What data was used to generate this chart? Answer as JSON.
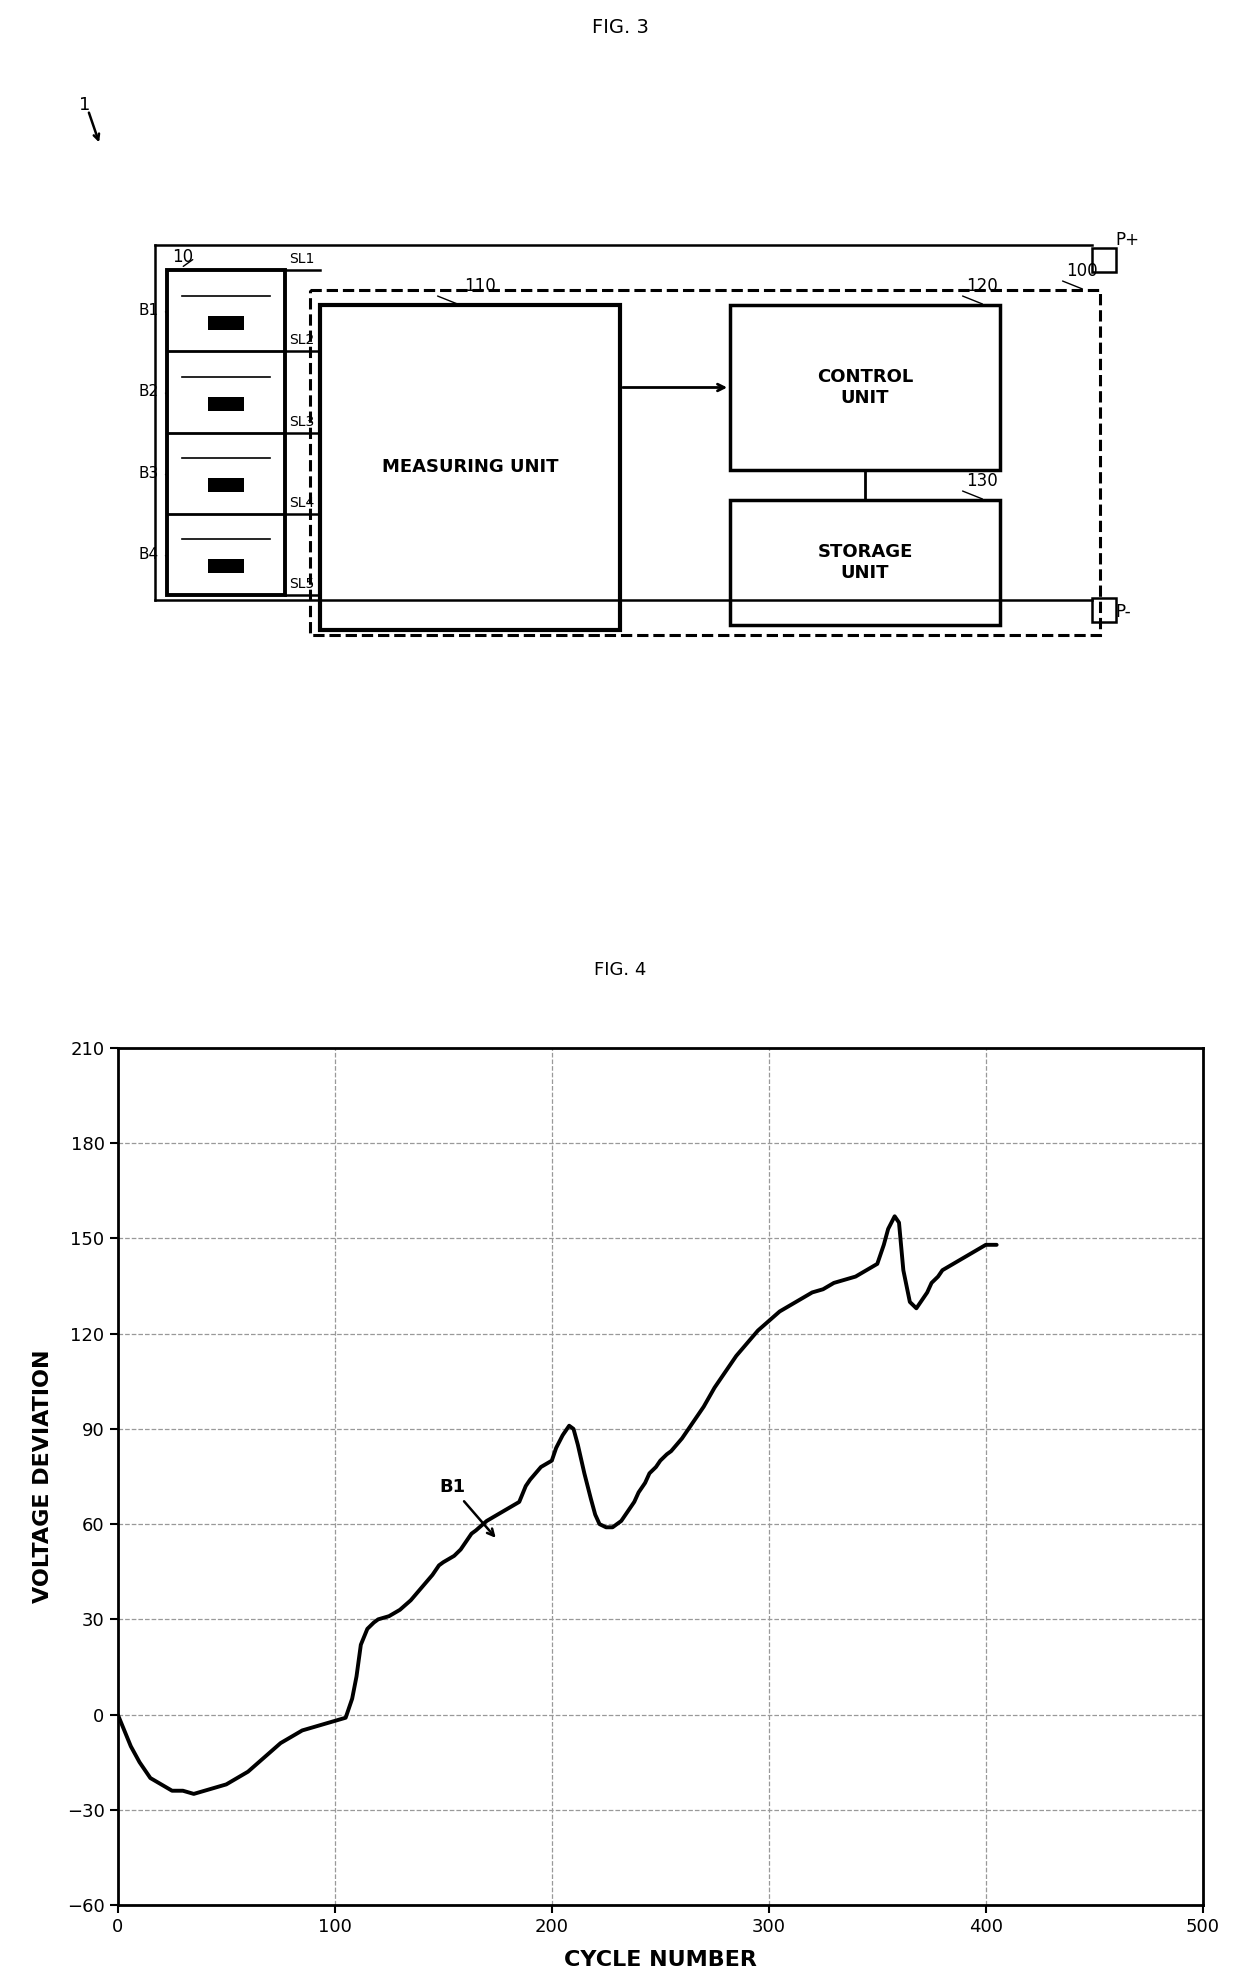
{
  "fig3_title": "FIG. 3",
  "fig4_title": "FIG. 4",
  "label_1": "1",
  "label_10": "10",
  "label_100": "100",
  "label_110": "110",
  "label_120": "120",
  "label_130": "130",
  "label_Pplus": "P+",
  "label_Pminus": "P-",
  "label_B1": "B1",
  "label_B2": "B2",
  "label_B3": "B3",
  "label_B4": "B4",
  "label_SL1": "SL1",
  "label_SL2": "SL2",
  "label_SL3": "SL3",
  "label_SL4": "SL4",
  "label_SL5": "SL5",
  "label_measuring": "MEASURING UNIT",
  "label_control": "CONTROL\nUNIT",
  "label_storage": "STORAGE\nUNIT",
  "xlabel": "CYCLE NUMBER",
  "ylabel": "VOLTAGE DEVIATION",
  "fig4_annotation": "B1",
  "bg_color": "#ffffff",
  "line_color": "#000000",
  "grid_color": "#999999",
  "curve_x": [
    0,
    3,
    6,
    10,
    15,
    20,
    25,
    30,
    35,
    40,
    45,
    50,
    55,
    60,
    65,
    70,
    75,
    80,
    85,
    90,
    95,
    100,
    105,
    108,
    110,
    112,
    115,
    118,
    120,
    125,
    130,
    135,
    140,
    145,
    148,
    150,
    155,
    158,
    160,
    163,
    165,
    170,
    175,
    180,
    185,
    188,
    190,
    195,
    200,
    202,
    205,
    208,
    210,
    212,
    215,
    218,
    220,
    222,
    225,
    228,
    230,
    232,
    235,
    238,
    240,
    243,
    245,
    248,
    250,
    253,
    255,
    260,
    265,
    270,
    275,
    280,
    285,
    290,
    295,
    300,
    305,
    310,
    315,
    320,
    325,
    330,
    335,
    340,
    345,
    350,
    353,
    355,
    358,
    360,
    362,
    365,
    368,
    370,
    373,
    375,
    378,
    380,
    385,
    390,
    395,
    400,
    405
  ],
  "curve_y": [
    0,
    -5,
    -10,
    -15,
    -20,
    -22,
    -24,
    -24,
    -25,
    -24,
    -23,
    -22,
    -20,
    -18,
    -15,
    -12,
    -9,
    -7,
    -5,
    -4,
    -3,
    -2,
    -1,
    5,
    12,
    22,
    27,
    29,
    30,
    31,
    33,
    36,
    40,
    44,
    47,
    48,
    50,
    52,
    54,
    57,
    58,
    61,
    63,
    65,
    67,
    72,
    74,
    78,
    80,
    84,
    88,
    91,
    90,
    85,
    76,
    68,
    63,
    60,
    59,
    59,
    60,
    61,
    64,
    67,
    70,
    73,
    76,
    78,
    80,
    82,
    83,
    87,
    92,
    97,
    103,
    108,
    113,
    117,
    121,
    124,
    127,
    129,
    131,
    133,
    134,
    136,
    137,
    138,
    140,
    142,
    148,
    153,
    157,
    155,
    140,
    130,
    128,
    130,
    133,
    136,
    138,
    140,
    142,
    144,
    146,
    148,
    148
  ]
}
